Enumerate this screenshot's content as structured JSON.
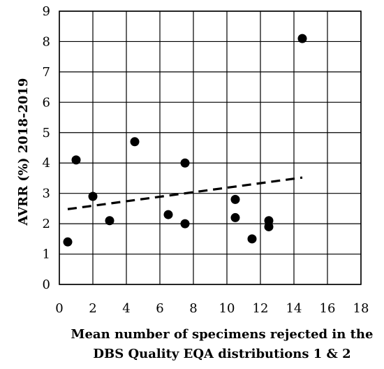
{
  "chart_data": {
    "type": "scatter",
    "title": "",
    "xlabel": [
      "Mean number of specimens rejected in the",
      "DBS Quality EQA distributions 1 & 2"
    ],
    "ylabel": "AVRR (%) 2018-2019",
    "xlim": [
      0,
      18
    ],
    "ylim": [
      0,
      9
    ],
    "xticks": [
      "0",
      "2",
      "4",
      "6",
      "8",
      "10",
      "12",
      "14",
      "16",
      "18"
    ],
    "yticks": [
      "0",
      "1",
      "2",
      "3",
      "4",
      "5",
      "6",
      "7",
      "8",
      "9"
    ],
    "grid": true,
    "legend": "none",
    "series": [
      {
        "points": [
          {
            "x": 0.5,
            "y": 1.4
          },
          {
            "x": 1.0,
            "y": 4.1
          },
          {
            "x": 2.0,
            "y": 2.9
          },
          {
            "x": 3.0,
            "y": 2.1
          },
          {
            "x": 4.5,
            "y": 4.7
          },
          {
            "x": 6.5,
            "y": 2.3
          },
          {
            "x": 7.5,
            "y": 4.0
          },
          {
            "x": 7.5,
            "y": 2.0
          },
          {
            "x": 10.5,
            "y": 2.8
          },
          {
            "x": 10.5,
            "y": 2.2
          },
          {
            "x": 11.5,
            "y": 1.5
          },
          {
            "x": 12.5,
            "y": 2.1
          },
          {
            "x": 12.5,
            "y": 1.9
          },
          {
            "x": 14.5,
            "y": 8.1
          }
        ],
        "color": "#000000"
      }
    ],
    "trendline": {
      "type": "linear",
      "style": "dashed",
      "color": "#000000",
      "x": [
        0.5,
        14.5
      ],
      "y": [
        2.48,
        3.52
      ]
    }
  }
}
